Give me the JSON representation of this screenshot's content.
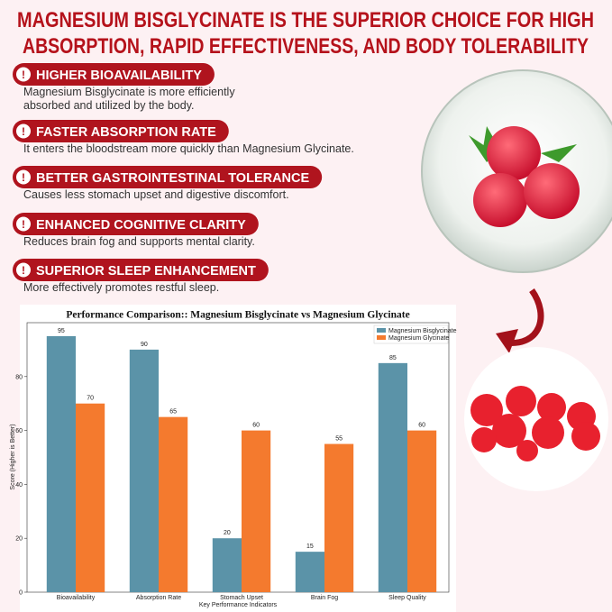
{
  "header": {
    "title_lines": [
      "MAGNESIUM BISGLYCINATE IS THE SUPERIOR CHOICE FOR HIGH",
      "ABSORPTION, RAPID EFFECTIVENESS, AND BODY TOLERABILITY"
    ]
  },
  "features": [
    {
      "label": "HIGHER BIOAVAILABILITY",
      "lines": [
        "Magnesium Bisglycinate is more efficiently",
        "absorbed and utilized by the body."
      ]
    },
    {
      "label": "FASTER ABSORPTION RATE",
      "lines": [
        "It enters the bloodstream more quickly than Magnesium Glycinate."
      ]
    },
    {
      "label": "BETTER GASTROINTESTINAL TOLERANCE",
      "lines": [
        "Causes less stomach upset and digestive discomfort."
      ]
    },
    {
      "label": "ENHANCED COGNITIVE CLARITY",
      "lines": [
        "Reduces brain fog and supports mental clarity."
      ]
    },
    {
      "label": "SUPERIOR SLEEP ENHANCEMENT",
      "lines": [
        "More effectively promotes restful sleep."
      ]
    }
  ],
  "chart_data": {
    "type": "bar",
    "title": "Performance Comparison:: Magnesium Bisglycinate vs Magnesium Glycinate",
    "x_label": "Key Performance Indicators",
    "y_label": "Score (Higher is Better)",
    "categories": [
      "Bioavailability",
      "Absorption Rate",
      "Stomach Upset",
      "Brain Fog",
      "Sleep Quality"
    ],
    "series": [
      {
        "name": "Magnesium Bisglycinate",
        "color": "#5b93a8",
        "values": [
          95,
          90,
          20,
          15,
          85
        ]
      },
      {
        "name": "Magnesium Glycinate",
        "color": "#f47a2e",
        "values": [
          70,
          65,
          60,
          55,
          60
        ]
      }
    ],
    "ylim": [
      0,
      100
    ],
    "yticks": [
      0,
      20,
      40,
      60,
      80
    ],
    "legend": "upper right"
  }
}
